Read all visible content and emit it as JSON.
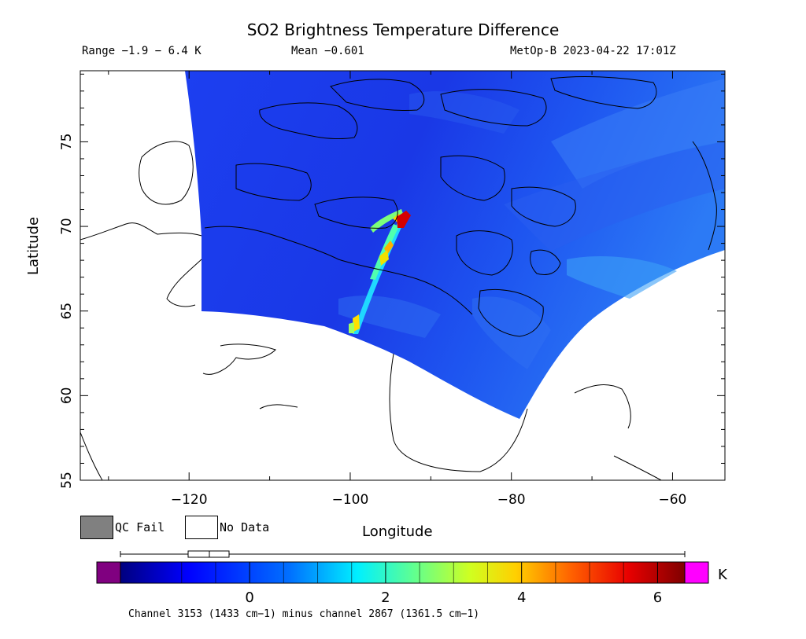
{
  "header": {
    "title": "SO2 Brightness Temperature Difference",
    "range_text": "Range −1.9 − 6.4 K",
    "mean_text": "Mean −0.601",
    "satellite_text": "MetOp-B 2023-04-22 17:01Z"
  },
  "axes": {
    "x_label": "Longitude",
    "y_label": "Latitude",
    "x_ticks": [
      "−120",
      "−100",
      "−80",
      "−60"
    ],
    "y_ticks": [
      "55",
      "60",
      "65",
      "70",
      "75"
    ],
    "lon_range": [
      -133.5,
      -53.5
    ],
    "lat_range": [
      55,
      79.2
    ]
  },
  "legend": {
    "qc_fail_label": "QC Fail",
    "no_data_label": "No Data",
    "qc_fail_color": "#808080",
    "no_data_color": "#ffffff"
  },
  "colorbar": {
    "unit": "K",
    "ticks": [
      "0",
      "2",
      "4",
      "6"
    ],
    "tick_values": [
      0,
      2,
      4,
      6
    ],
    "min": -1.9,
    "max": 6.4,
    "under_color": "#800080",
    "over_color": "#ff00ff",
    "colormap": [
      "#00007f",
      "#0000ff",
      "#0080ff",
      "#00ffff",
      "#80ff80",
      "#ffff00",
      "#ff8000",
      "#ff0000",
      "#7f0000"
    ]
  },
  "footnote": "Channel 3153 (1433 cm−1) minus channel 2867 (1361.5 cm−1)",
  "colors": {
    "swath_base": "#1a3fe8",
    "plume_peak": "#d40000",
    "coastline": "#000000"
  }
}
